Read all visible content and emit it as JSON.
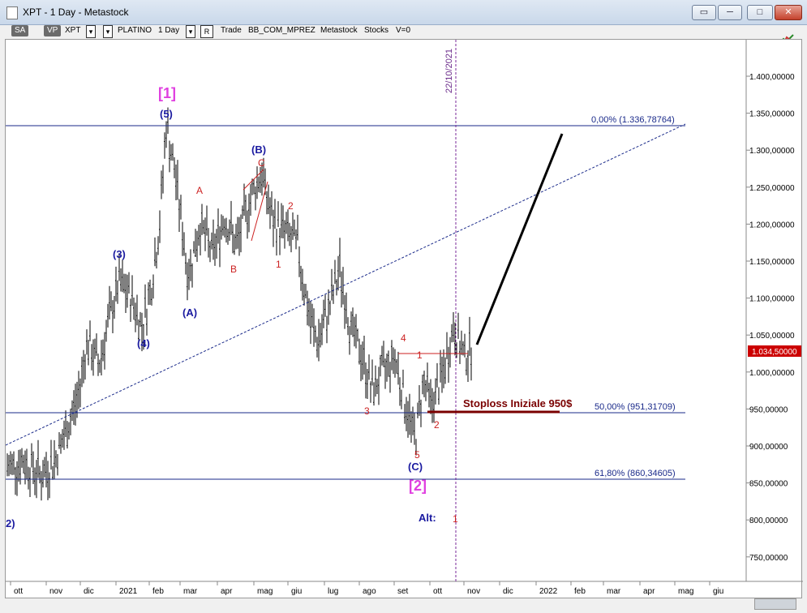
{
  "window": {
    "title": "XPT - 1 Day - Metastock"
  },
  "toolbar": {
    "sa": "SA",
    "vp": "VP",
    "symbol": "XPT",
    "name": "PLATINO",
    "period": "1 Day",
    "r": "R",
    "trade": "Trade",
    "account": "BB_COM_MPREZ",
    "source": "Metastock",
    "type": "Stocks",
    "v": "V=0",
    "dropdown_glyph": "▾"
  },
  "price_axis": {
    "labels": [
      "1.400,00000",
      "1.350,00000",
      "1.300,00000",
      "1.250,00000",
      "1.200,00000",
      "1.150,00000",
      "1.100,00000",
      "1.050,00000",
      "1.000,00000",
      "950,00000",
      "900,00000",
      "850,00000",
      "800,00000",
      "750,00000"
    ],
    "current_price": "1.034,50000",
    "current_color": "#cc0000"
  },
  "time_axis": {
    "labels": [
      "ott",
      "nov",
      "dic",
      "2021",
      "feb",
      "mar",
      "apr",
      "mag",
      "giu",
      "lug",
      "ago",
      "set",
      "ott",
      "nov",
      "dic",
      "2022",
      "feb",
      "mar",
      "apr",
      "mag",
      "giu"
    ]
  },
  "fib_levels": [
    "0,00% (1.336,78764)",
    "50,00% (951,31709)",
    "61,80% (860,34605)"
  ],
  "vertical_marker": "22/10/2021",
  "stoploss": "Stoploss Iniziale 950$",
  "wave_labels": {
    "w1": "[1]",
    "w5": "(5)",
    "w3": "(3)",
    "w4": "(4)",
    "wA": "(A)",
    "wB": "(B)",
    "wC": "(C)",
    "w2b": "[2]",
    "w2left": "2)",
    "alt": "Alt:",
    "alt1": "1",
    "a": "A",
    "b": "B",
    "c": "C",
    "r2": "2",
    "r1": "1",
    "r4": "4",
    "r1b": "1",
    "r3": "3",
    "r2b": "2",
    "r5": "5"
  },
  "colors": {
    "blue": "#1a1aa0",
    "red": "#cc2222",
    "magenta": "#e040e0",
    "fib": "#1a2a8a",
    "stop": "#7a0000",
    "purple": "#6a2a8a"
  }
}
